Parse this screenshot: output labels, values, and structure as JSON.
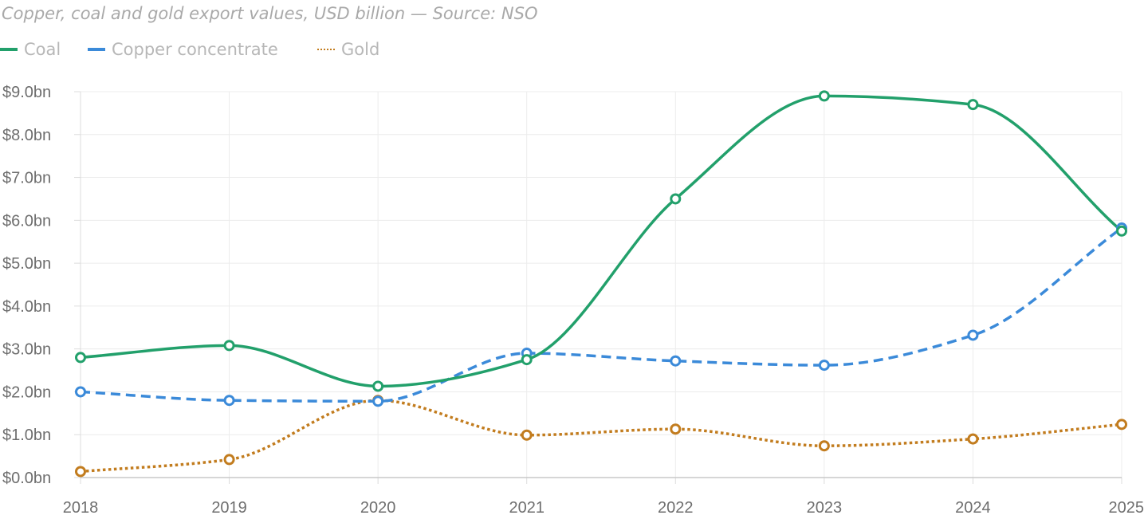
{
  "chart_data": {
    "type": "line",
    "title": "Copper, coal and gold export values, USD billion — Source: NSO",
    "xlabel": "",
    "ylabel": "",
    "x": [
      "2018",
      "2019",
      "2020",
      "2021",
      "2022",
      "2023",
      "2024",
      "2025"
    ],
    "ylim": [
      0,
      9
    ],
    "yticks": [
      0,
      1,
      2,
      3,
      4,
      5,
      6,
      7,
      8,
      9
    ],
    "ytick_labels": [
      "$0.0bn",
      "$1.0bn",
      "$2.0bn",
      "$3.0bn",
      "$4.0bn",
      "$5.0bn",
      "$6.0bn",
      "$7.0bn",
      "$8.0bn",
      "$9.0bn"
    ],
    "grid": true,
    "legend_position": "top-left",
    "series": [
      {
        "name": "Coal",
        "color": "#22a06b",
        "style": "solid",
        "values": [
          2.8,
          3.08,
          2.13,
          2.75,
          6.5,
          8.9,
          8.7,
          5.75
        ]
      },
      {
        "name": "Copper concentrate",
        "color": "#3b8ad9",
        "style": "dashed",
        "values": [
          2.0,
          1.8,
          1.78,
          2.9,
          2.72,
          2.62,
          3.32,
          5.82
        ]
      },
      {
        "name": "Gold",
        "color": "#c27c1e",
        "style": "dotted",
        "values": [
          0.14,
          0.42,
          1.8,
          0.99,
          1.13,
          0.74,
          0.9,
          1.24
        ]
      }
    ]
  }
}
